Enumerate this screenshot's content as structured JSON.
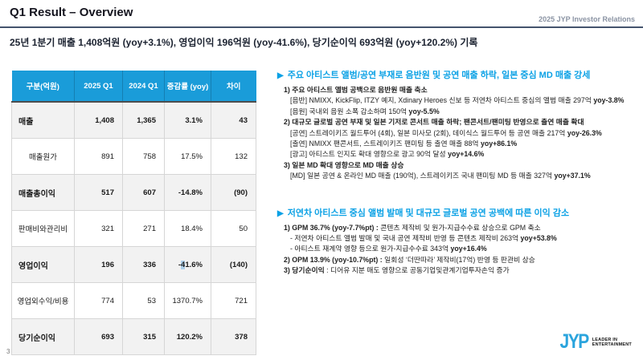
{
  "header": {
    "title": "Q1 Result – Overview",
    "right_label": "2025 JYP Investor Relations",
    "subtitle": "25년 1분기 매출 1,408억원 (yoy+3.1%), 영업이익 196억원 (yoy-41.6%), 당기순이익 693억원 (yoy+120.2%) 기록"
  },
  "table": {
    "columns": [
      "구분(억원)",
      "2025 Q1",
      "2024 Q1",
      "증감률 (yoy)",
      "차이"
    ],
    "rows": [
      {
        "label": "매출",
        "bold": true,
        "values": [
          "1,408",
          "1,365",
          "3.1%",
          "43"
        ]
      },
      {
        "label": "매출원가",
        "bold": false,
        "values": [
          "891",
          "758",
          "17.5%",
          "132"
        ]
      },
      {
        "label": "매출총이익",
        "bold": true,
        "values": [
          "517",
          "607",
          "-14.8%",
          "(90)"
        ]
      },
      {
        "label": "판매비와관리비",
        "bold": false,
        "values": [
          "321",
          "271",
          "18.4%",
          "50"
        ]
      },
      {
        "label": "영업이익",
        "bold": true,
        "values": [
          "196",
          "336",
          "-41.6%",
          "(140)"
        ],
        "yoy_highlight": {
          "pre": "-",
          "mark": "4",
          "post": "1.6%"
        }
      },
      {
        "label": "영업외수익/비용",
        "bold": false,
        "values": [
          "774",
          "53",
          "1370.7%",
          "721"
        ]
      },
      {
        "label": "당기순이익",
        "bold": true,
        "values": [
          "693",
          "315",
          "120.2%",
          "378"
        ]
      }
    ]
  },
  "sections": [
    {
      "marker": "▶",
      "heading": "주요 아티스트 앨범/공연 부재로 음반원 및 공연 매출 하락, 일본 중심 MD 매출 강세",
      "lines": [
        {
          "indent": 0,
          "parts": [
            {
              "t": "1) 주요 아티스트 앨범 공백으로 음반원 매출 축소",
              "b": true
            }
          ]
        },
        {
          "indent": 1,
          "parts": [
            {
              "t": "[음반] NMIXX, KickFlip, ITZY 예지, Xdinary Heroes 신보 등 저연차 아티스트 중심의 앨범 매출 297억 ",
              "b": false
            },
            {
              "t": "yoy-3.8%",
              "b": true
            }
          ]
        },
        {
          "indent": 1,
          "parts": [
            {
              "t": "[음원] 국내외 음원 소폭 감소하며 150억 ",
              "b": false
            },
            {
              "t": "yoy-5.5%",
              "b": true
            }
          ]
        },
        {
          "indent": 0,
          "parts": [
            {
              "t": "2) 대규모 글로벌 공연 부재 및 일본 기저로 콘서트 매출 하락; 팬콘서트/팬미팅 반영으로 출연 매출 확대",
              "b": true
            }
          ]
        },
        {
          "indent": 1,
          "parts": [
            {
              "t": "[공연] 스트레이키즈 월드투어 (4회), 일본 미사모 (2회), 데이식스 월드투어 등 공연 매출 217억 ",
              "b": false
            },
            {
              "t": "yoy-26.3%",
              "b": true
            }
          ]
        },
        {
          "indent": 1,
          "parts": [
            {
              "t": "[출연] NMIXX 팬콘서트, 스트레이키즈 팬미팅 등 출연 매출 88억 ",
              "b": false
            },
            {
              "t": "yoy+86.1%",
              "b": true
            }
          ]
        },
        {
          "indent": 1,
          "parts": [
            {
              "t": "[광고] 아티스트 인지도 확대 영향으로 광고 90억 달성 ",
              "b": false
            },
            {
              "t": "yoy+14.6%",
              "b": true
            }
          ]
        },
        {
          "indent": 0,
          "parts": [
            {
              "t": "3) 일본 MD 확대 영향으로 MD 매출 상승",
              "b": true
            }
          ]
        },
        {
          "indent": 1,
          "parts": [
            {
              "t": "[MD] 일본 공연 & 온라인 MD 매출 (190억), 스트레이키즈 국내 팬미팅 MD 등 매출 327억 ",
              "b": false
            },
            {
              "t": "yoy+37.1%",
              "b": true
            }
          ]
        }
      ]
    },
    {
      "marker": "▶",
      "heading": "저연차 아티스트 중심 앨범 발매 및 대규모 글로벌 공연 공백에 따른 이익 감소",
      "lines": [
        {
          "indent": 0,
          "parts": [
            {
              "t": "1) GPM 36.7% (yoy-7.7%pt) : ",
              "b": true
            },
            {
              "t": "콘텐츠 제작비 및 원가-지급수수료 상승으로 GPM 축소",
              "b": false
            }
          ]
        },
        {
          "indent": 1,
          "parts": [
            {
              "t": "- 저연차 아티스트 앨범 발매 및 국내 공연 제작비 반영 등 콘텐츠 제작비 263억 ",
              "b": false
            },
            {
              "t": "yoy+53.8%",
              "b": true
            }
          ]
        },
        {
          "indent": 1,
          "parts": [
            {
              "t": "- 아티스트 재계약 영향 등으로 원가-지급수수료 343억 ",
              "b": false
            },
            {
              "t": "yoy+16.4%",
              "b": true
            }
          ]
        },
        {
          "indent": 0,
          "parts": [
            {
              "t": "2) OPM 13.9% (yoy-10.7%pt) : ",
              "b": true
            },
            {
              "t": "일회성 ‘더딴따라’ 제작비(17억) 반영 등 판관비 상승",
              "b": false
            }
          ]
        },
        {
          "indent": 0,
          "parts": [
            {
              "t": "3) 당기순이익",
              "b": true
            },
            {
              "t": " : 디어유 지분 매도 영향으로 공동기업및관계기업투자손익 증가",
              "b": false
            }
          ]
        }
      ]
    }
  ],
  "footer": {
    "page_number": "3",
    "logo_text": "JYP",
    "logo_tagline_line1": "LEADER IN",
    "logo_tagline_line2": "ENTERTAINMENT"
  },
  "colors": {
    "table_header_bg": "#1a9cd9",
    "accent_blue": "#0ba1e5",
    "logo_blue": "#2aa4dd",
    "title_rule": "#44536d",
    "selection_highlight": "#aed0ea"
  }
}
